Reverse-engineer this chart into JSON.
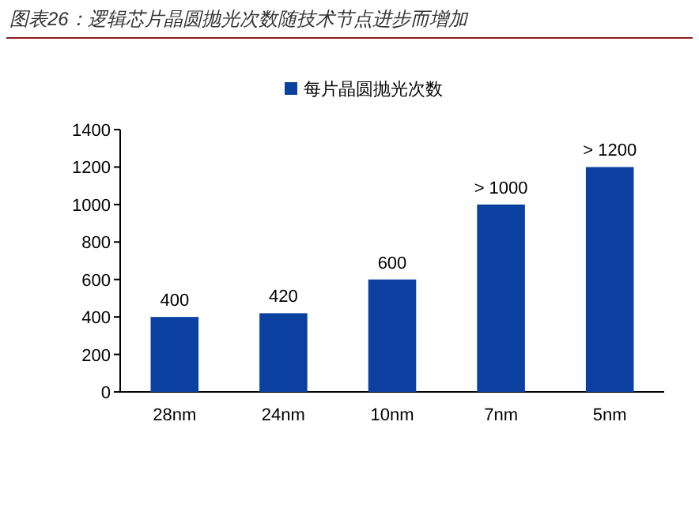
{
  "chart_data": {
    "type": "bar",
    "title": "图表26：逻辑芯片晶圆抛光次数随技术节点进步而增加",
    "categories": [
      "28nm",
      "24nm",
      "10nm",
      "7nm",
      "5nm"
    ],
    "series": [
      {
        "name": "每片晶圆抛光次数",
        "color": "#0b3fa0",
        "values": [
          400,
          420,
          600,
          1000,
          1200
        ],
        "value_labels": [
          "400",
          "420",
          "600",
          "> 1000",
          "> 1200"
        ]
      }
    ],
    "ylim": [
      0,
      1400
    ],
    "yticks": [
      0,
      200,
      400,
      600,
      800,
      1000,
      1200,
      1400
    ],
    "grid": false,
    "legend": "top"
  }
}
